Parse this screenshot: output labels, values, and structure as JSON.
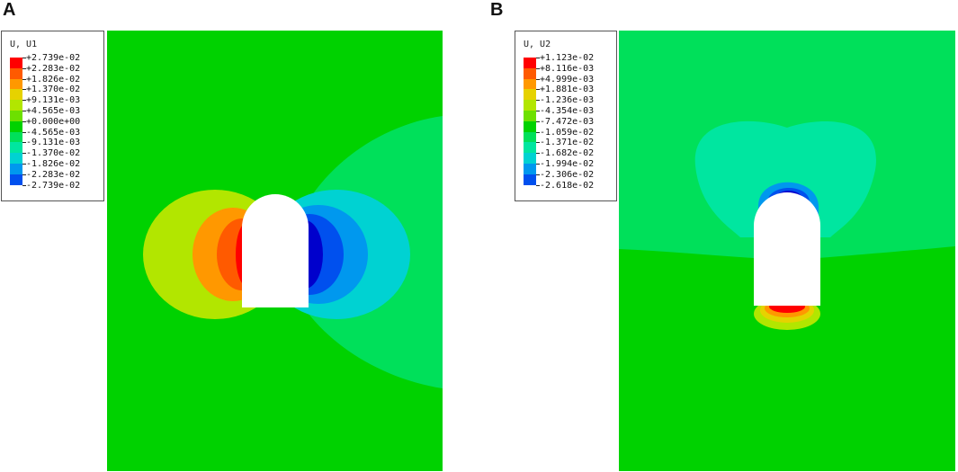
{
  "panels": [
    {
      "letter": "A",
      "legend_title": "U, U1",
      "legend_values": [
        "+2.739e-02",
        "+2.283e-02",
        "+1.826e-02",
        "+1.370e-02",
        "+9.131e-03",
        "+4.565e-03",
        "+0.000e+00",
        "-4.565e-03",
        "-9.131e-03",
        "-1.370e-02",
        "-1.826e-02",
        "-2.283e-02",
        "-2.739e-02"
      ],
      "band_colors": [
        "#ff0000",
        "#ff5a00",
        "#ff9800",
        "#e6d200",
        "#b2e600",
        "#6de000",
        "#00d200",
        "#00e05a",
        "#00e6a0",
        "#00d2d2",
        "#0098ee",
        "#0050ee",
        "#0000cc"
      ]
    },
    {
      "letter": "B",
      "legend_title": "U, U2",
      "legend_values": [
        "+1.123e-02",
        "+8.116e-03",
        "+4.999e-03",
        "+1.881e-03",
        "-1.236e-03",
        "-4.354e-03",
        "-7.472e-03",
        "-1.059e-02",
        "-1.371e-02",
        "-1.682e-02",
        "-1.994e-02",
        "-2.306e-02",
        "-2.618e-02"
      ],
      "band_colors": [
        "#ff0000",
        "#ff5a00",
        "#ff9800",
        "#e6d200",
        "#b2e600",
        "#6de000",
        "#00d200",
        "#00e05a",
        "#00e6a0",
        "#00d2d2",
        "#0098ee",
        "#0050ee",
        "#0000cc"
      ]
    }
  ]
}
